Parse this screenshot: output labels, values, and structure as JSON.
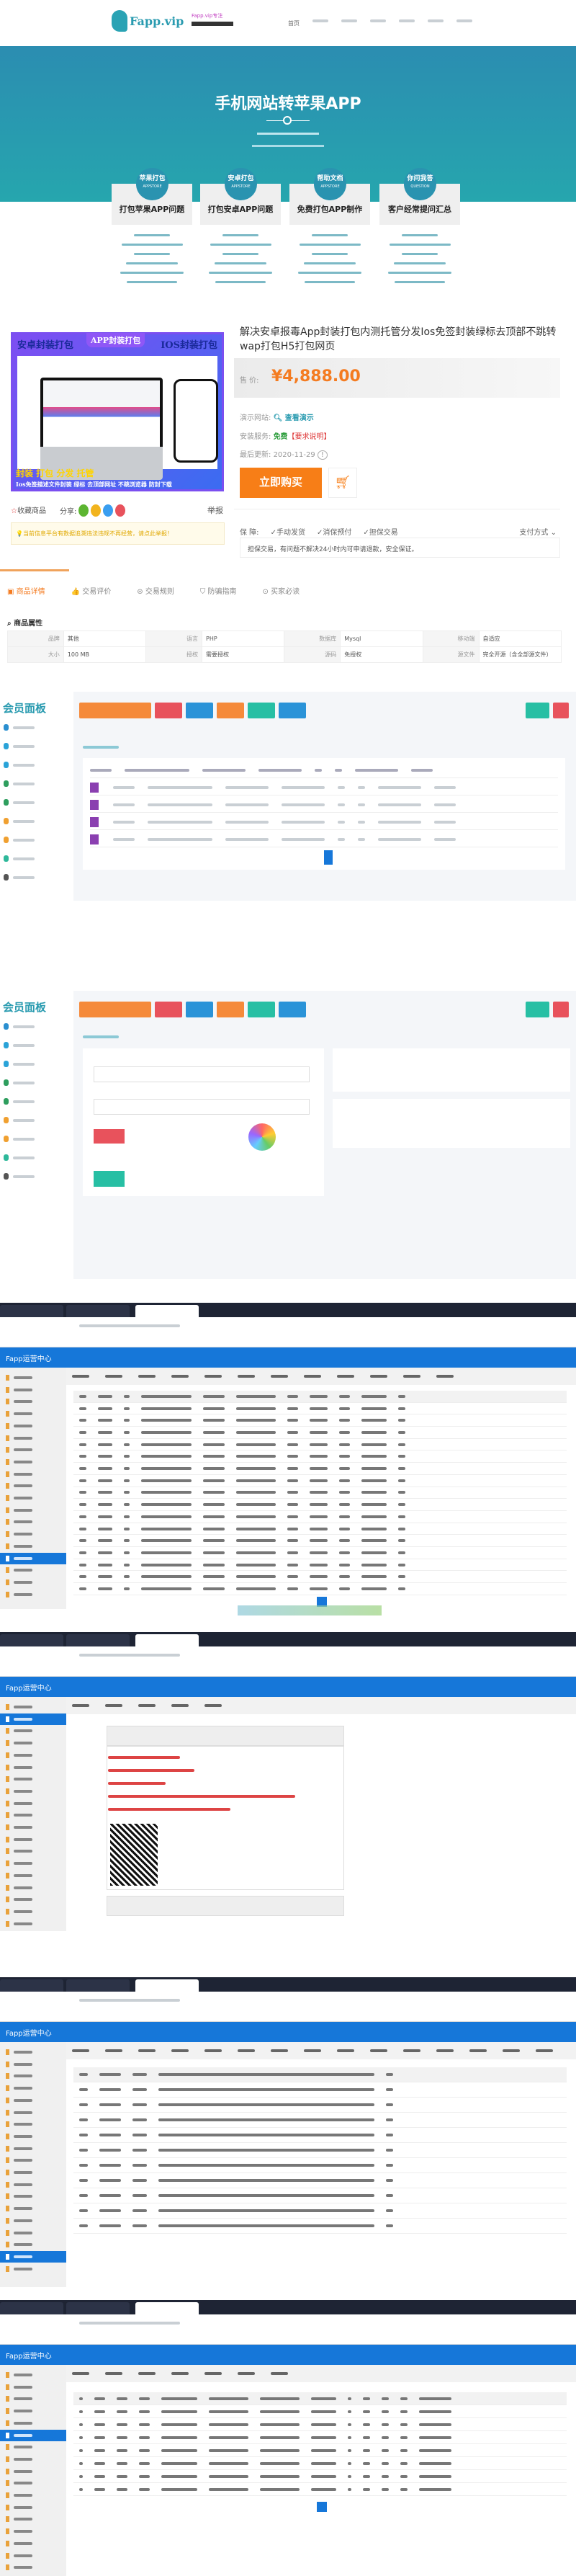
{
  "header": {
    "logo_text": "Fapp.vip",
    "logo_tagline": "Fapp.vip专注",
    "nav": [
      "首页"
    ]
  },
  "banner": {
    "title": "手机网站转苹果APP"
  },
  "features": [
    {
      "badge": "苹果打包",
      "badge_sub": "APPSTORE",
      "title": "打包苹果APP问题"
    },
    {
      "badge": "安卓打包",
      "badge_sub": "APPSTORE",
      "title": "打包安卓APP问题"
    },
    {
      "badge": "帮助文档",
      "badge_sub": "APPSTORE",
      "title": "免费打包APP制作"
    },
    {
      "badge": "你问我答",
      "badge_sub": "QUESTION",
      "title": "客户经常提问汇总"
    }
  ],
  "product": {
    "image_texts": {
      "left": "安卓封装打包",
      "center": "APP封装打包",
      "right": "IOS封装打包",
      "b1": "封装 打包 分发 托管",
      "b2": "Ios免签描述文件封装 绿标 去顶部网址 不跳浏览器 防封下载"
    },
    "title": "解决安卓报毒App封装打包内测托管分发Ios免签封装绿标去顶部不跳转wap打包H5打包网页",
    "price_label": "售 价:",
    "price": "¥4,888.00",
    "demo_label": "演示网站:",
    "demo_link": "查看演示",
    "install_label": "安装服务:",
    "install_value": "免费",
    "install_note": "【要求说明】",
    "updated_label": "最后更新:",
    "updated_value": "2020-11-29",
    "buy_label": "立即购买",
    "favorite_label": "收藏商品",
    "share_label": "分享:",
    "report_label": "举报",
    "notice": "当前信息平台有数据追溯违法违规不再经营，请点此举报！",
    "guarantee_label": "保 障:",
    "guarantees": [
      "手动发货",
      "消保预付",
      "担保交易"
    ],
    "payment_label": "支付方式",
    "guarantee_desc": "担保交易，有问题不解决24小时内可申请退款，安全保证。",
    "colors": {
      "price": "#f47b20",
      "buy": "#f77e17",
      "accent": "#2a9bb0"
    }
  },
  "tabs": [
    {
      "label": "商品详情",
      "active": true
    },
    {
      "label": "交易评价"
    },
    {
      "label": "交易规则"
    },
    {
      "label": "防骗指南"
    },
    {
      "label": "买家必读"
    }
  ],
  "attributes": {
    "title": "商品属性",
    "rows": [
      [
        [
          "品牌",
          "其他"
        ],
        [
          "语言",
          "PHP"
        ],
        [
          "数据库",
          "Mysql"
        ],
        [
          "移动端",
          "自适应"
        ]
      ],
      [
        [
          "大小",
          "100 MB"
        ],
        [
          "授权",
          "需要授权"
        ],
        [
          "源码",
          "免授权"
        ],
        [
          "源文件",
          "完全开源（含全部源文件）"
        ]
      ]
    ]
  },
  "shots": {
    "member_panel_title": "会员面板",
    "admin_title": "Fapp运营中心"
  }
}
